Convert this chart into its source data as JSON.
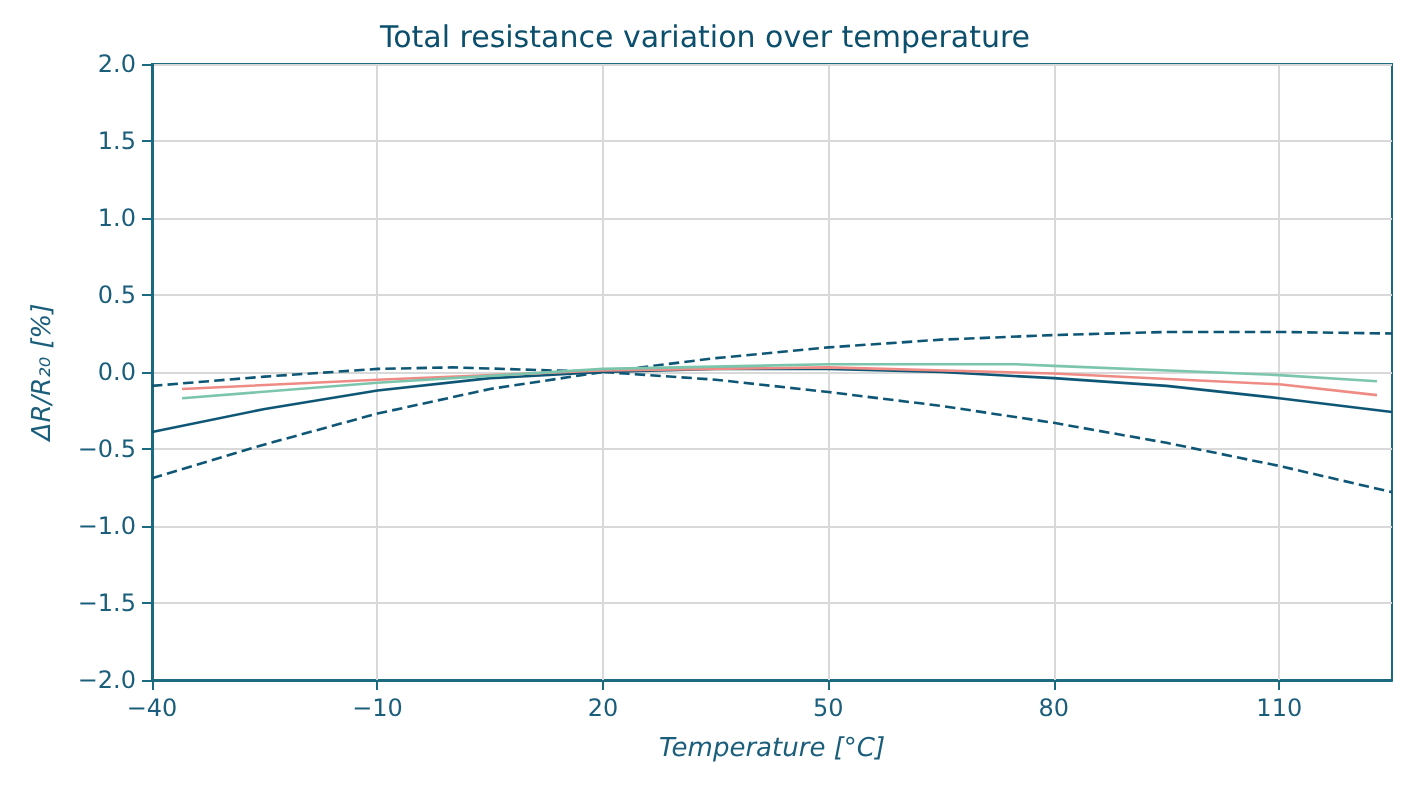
{
  "chart_data": {
    "type": "line",
    "title": "Total resistance variation over temperature",
    "xlabel": "Temperature [°C]",
    "ylabel": "ΔR/R₂₀ [%]",
    "xlim": [
      -40,
      125
    ],
    "xticks": [
      {
        "value": -40,
        "label": "−40"
      },
      {
        "value": -10,
        "label": "−10"
      },
      20,
      50,
      80,
      110
    ],
    "ylim": [
      -2,
      2
    ],
    "yticks": [
      {
        "value": -2,
        "label": "−2.0"
      },
      {
        "value": -1.5,
        "label": "−1.5"
      },
      {
        "value": -1,
        "label": "−1.0"
      },
      {
        "value": -0.5,
        "label": "−0.5"
      },
      {
        "value": 0,
        "label": "0.0"
      },
      {
        "value": 0.5,
        "label": "0.5"
      },
      {
        "value": 1,
        "label": "1.0"
      },
      {
        "value": 1.5,
        "label": "1.5"
      },
      {
        "value": 2,
        "label": "2.0"
      }
    ],
    "grid": true,
    "marker": "none",
    "series": [
      {
        "color": "#0e5675",
        "line_style": "dashed",
        "x": [
          -40,
          -25,
          -10,
          0,
          20,
          35,
          50,
          65,
          80,
          95,
          110,
          125
        ],
        "values": [
          -0.09,
          -0.03,
          0.02,
          0.03,
          0.0,
          -0.05,
          -0.13,
          -0.22,
          -0.33,
          -0.46,
          -0.61,
          -0.78
        ]
      },
      {
        "color": "#0e5675",
        "line_style": "dashed",
        "x": [
          -40,
          -25,
          -10,
          5,
          20,
          35,
          50,
          65,
          80,
          95,
          110,
          125
        ],
        "values": [
          -0.69,
          -0.47,
          -0.27,
          -0.11,
          0.0,
          0.09,
          0.16,
          0.21,
          0.24,
          0.26,
          0.26,
          0.25
        ]
      },
      {
        "color": "#0e5675",
        "line_style": "solid",
        "x": [
          -40,
          -25,
          -10,
          5,
          20,
          35,
          50,
          65,
          80,
          95,
          110,
          125
        ],
        "values": [
          -0.39,
          -0.24,
          -0.12,
          -0.04,
          0.0,
          0.02,
          0.02,
          0.0,
          -0.04,
          -0.09,
          -0.17,
          -0.26
        ]
      },
      {
        "color": "#ee8b84",
        "line_style": "solid",
        "x": [
          -36,
          -10,
          20,
          50,
          80,
          110,
          123
        ],
        "values": [
          -0.11,
          -0.05,
          0.01,
          0.03,
          -0.01,
          -0.08,
          -0.15
        ]
      },
      {
        "color": "#7cc5ad",
        "line_style": "solid",
        "x": [
          -36,
          -10,
          20,
          50,
          75,
          80,
          110,
          123
        ],
        "values": [
          -0.17,
          -0.07,
          0.02,
          0.05,
          0.05,
          0.04,
          -0.02,
          -0.06
        ]
      }
    ]
  }
}
